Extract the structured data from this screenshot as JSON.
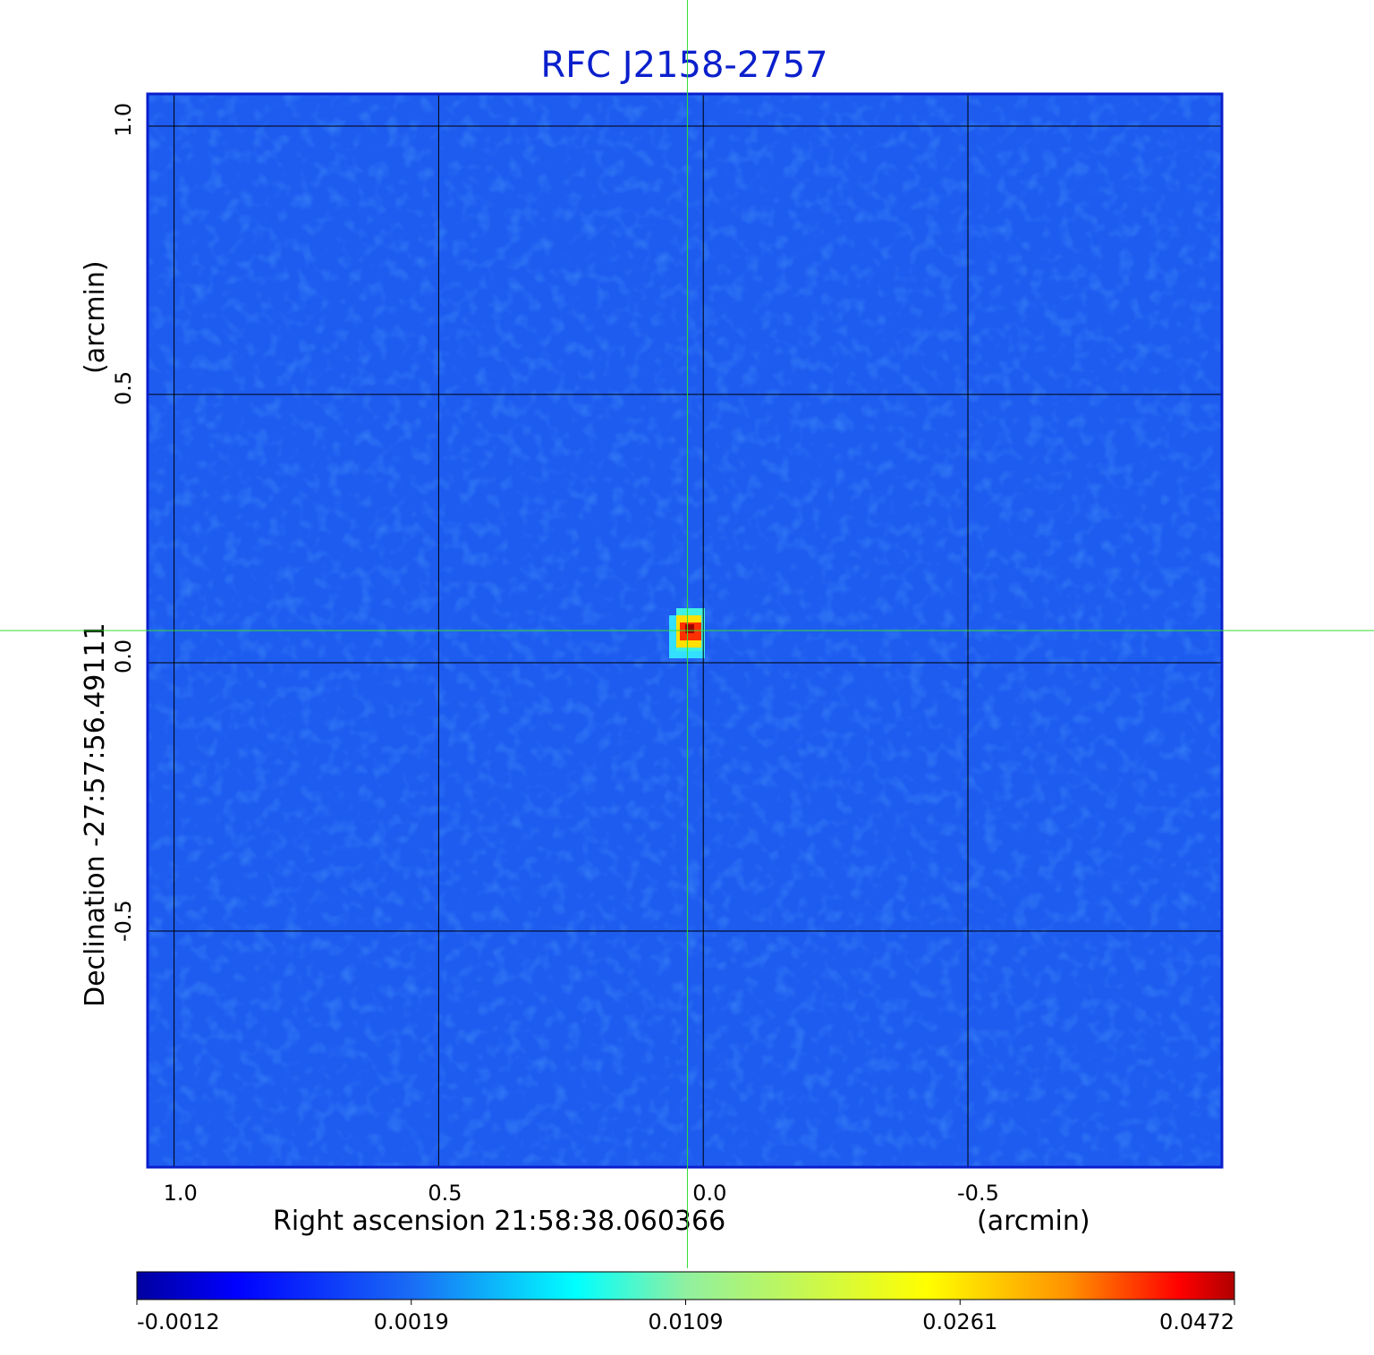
{
  "chart_data": {
    "type": "image",
    "title": "RFC J2158-2757",
    "x_label": "Right ascension  21:58:38.060366",
    "x_unit": "(arcmin)",
    "y_label": "Declination  -27:57:56.49111",
    "y_unit": "(arcmin)",
    "xlim": [
      1.05,
      -0.98
    ],
    "ylim": [
      -0.94,
      1.06
    ],
    "xticks": [
      {
        "value": 1,
        "label": "1.0"
      },
      0.5,
      {
        "value": 0,
        "label": "0.0"
      },
      -0.5
    ],
    "yticks": [
      {
        "value": 1,
        "label": "1.0"
      },
      0.5,
      {
        "value": 0,
        "label": "0.0"
      },
      -0.5
    ],
    "grid": true,
    "crosshair": [
      0.03,
      0.06
    ],
    "colorbar": {
      "lim": [
        -0.0012,
        0.0472
      ],
      "ticks": [
        -0.0012,
        0.0019,
        0.0109,
        0.0261,
        0.0472
      ]
    }
  }
}
